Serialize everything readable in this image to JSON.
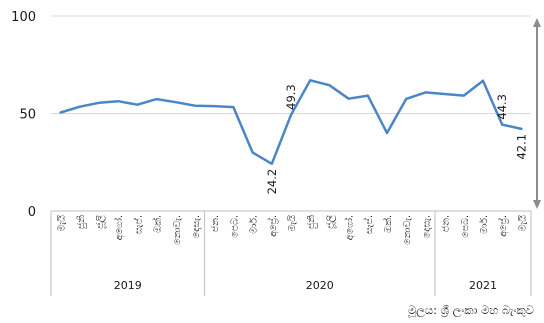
{
  "chart_data": {
    "type": "line",
    "title": "",
    "xlabel": "",
    "ylabel": "",
    "ylim": [
      0,
      100
    ],
    "yticks": [
      0,
      50,
      100
    ],
    "grid": true,
    "line_color": "#4a86c8",
    "categories": [
      "මැයි",
      "ජුනි",
      "ජූලි",
      "අගෝ.",
      "සැප්.",
      "ඔක්.",
      "නොවැ.",
      "දෙසැ.",
      "ජන.",
      "පෙබ.",
      "මාර්.",
      "අප්‍රේ.",
      "මැයි",
      "ජුනි",
      "ජූලි",
      "අගෝ.",
      "සැප්.",
      "ඔක්.",
      "නොවැ.",
      "දෙසැ.",
      "ජන.",
      "පෙබ.",
      "මාර්.",
      "අප්‍රේ.",
      "මැයි"
    ],
    "years": [
      {
        "label": "2019",
        "start": 0,
        "end": 7
      },
      {
        "label": "2020",
        "start": 8,
        "end": 19
      },
      {
        "label": "2021",
        "start": 20,
        "end": 24
      }
    ],
    "series": [
      {
        "values": [
          50.5,
          53.5,
          55.5,
          56.3,
          54.5,
          57.4,
          55.8,
          54.0,
          53.8,
          53.3,
          30.0,
          24.2,
          49.3,
          67.0,
          64.5,
          57.6,
          59.2,
          40.0,
          57.5,
          60.8,
          60.0,
          59.2,
          66.8,
          44.3,
          42.1
        ]
      }
    ],
    "annotations": [
      {
        "index": 11,
        "text": "24.2",
        "position": "below"
      },
      {
        "index": 12,
        "text": "49.3",
        "position": "above"
      },
      {
        "index": 23,
        "text": "44.3",
        "position": "above"
      },
      {
        "index": 24,
        "text": "42.1",
        "position": "below"
      }
    ],
    "arrow": {
      "from": 100,
      "to": 0,
      "direction": "both",
      "color": "#8c8c8c"
    }
  },
  "source": "මූලය: ශ්‍රී ලංකා මහ බැංකුව"
}
